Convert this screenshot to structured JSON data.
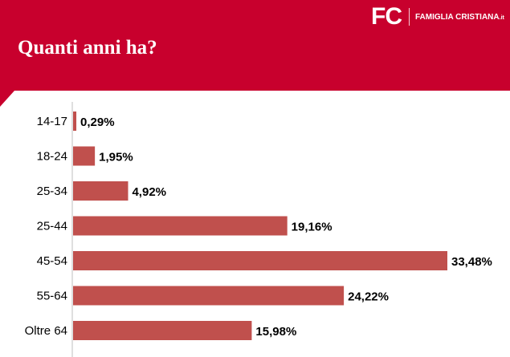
{
  "header": {
    "title": "Quanti anni ha?",
    "logo_mark": "FC",
    "logo_text": "FAMIGLIA CRISTIANA",
    "logo_suffix": ".it"
  },
  "colors": {
    "header": "#c8002d",
    "bar": "#c0504d",
    "axis": "#bfbfbf"
  },
  "chart_data": {
    "type": "bar",
    "orientation": "horizontal",
    "title": "Quanti anni ha?",
    "categories": [
      "14-17",
      "18-24",
      "25-34",
      "25-44",
      "45-54",
      "55-64",
      "Oltre 64"
    ],
    "values": [
      0.29,
      1.95,
      4.92,
      19.16,
      33.48,
      24.22,
      15.98
    ],
    "value_labels": [
      "0,29%",
      "1,95%",
      "4,92%",
      "19,16%",
      "33,48%",
      "24,22%",
      "15,98%"
    ],
    "xlabel": "",
    "ylabel": "",
    "xlim": [
      0,
      35
    ],
    "grid": false,
    "legend": "none"
  }
}
